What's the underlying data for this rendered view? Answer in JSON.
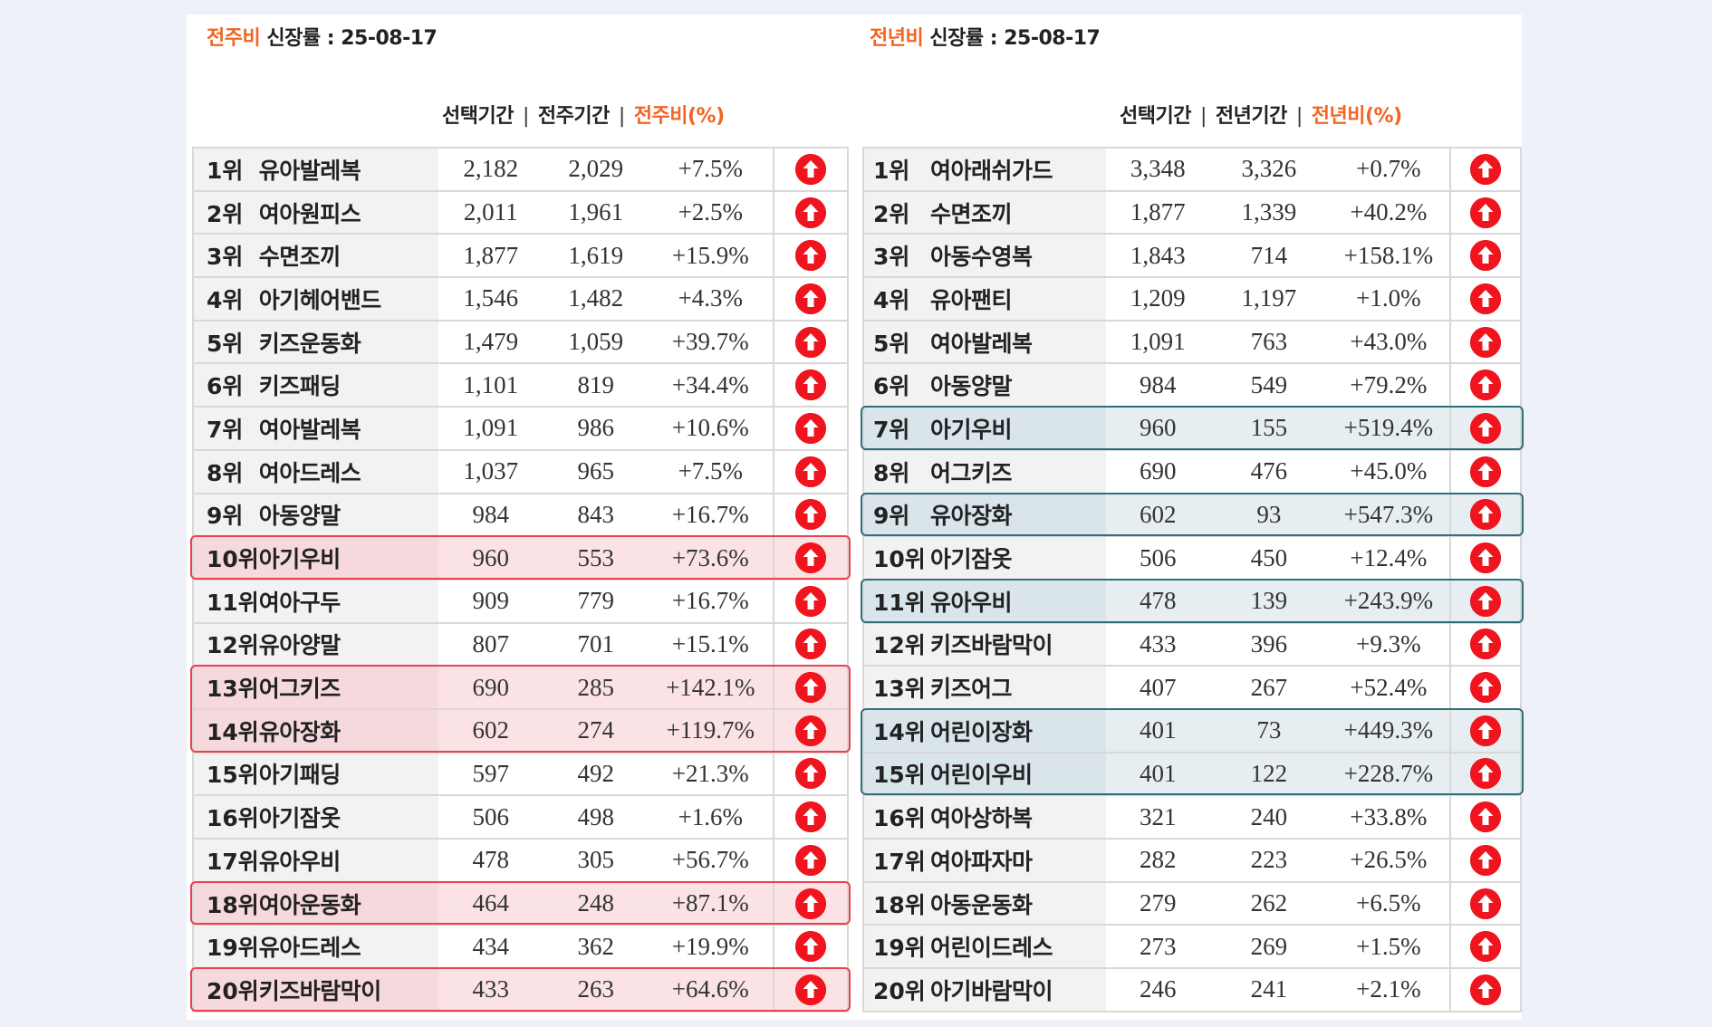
{
  "left": {
    "title_accent": "전주비",
    "title_rest": " 신장률  : 25-08-17",
    "col_selected": "선택기간",
    "col_compare": "전주기간",
    "col_ratio": "전주비(%)",
    "rows": [
      {
        "rank": "1위",
        "name": "유아발레복",
        "selected": "2,182",
        "compare": "2,029",
        "ratio": "+7.5%"
      },
      {
        "rank": "2위",
        "name": "여아원피스",
        "selected": "2,011",
        "compare": "1,961",
        "ratio": "+2.5%"
      },
      {
        "rank": "3위",
        "name": "수면조끼",
        "selected": "1,877",
        "compare": "1,619",
        "ratio": "+15.9%"
      },
      {
        "rank": "4위",
        "name": "아기헤어밴드",
        "selected": "1,546",
        "compare": "1,482",
        "ratio": "+4.3%"
      },
      {
        "rank": "5위",
        "name": "키즈운동화",
        "selected": "1,479",
        "compare": "1,059",
        "ratio": "+39.7%"
      },
      {
        "rank": "6위",
        "name": "키즈패딩",
        "selected": "1,101",
        "compare": "819",
        "ratio": "+34.4%"
      },
      {
        "rank": "7위",
        "name": "여아발레복",
        "selected": "1,091",
        "compare": "986",
        "ratio": "+10.6%"
      },
      {
        "rank": "8위",
        "name": "여아드레스",
        "selected": "1,037",
        "compare": "965",
        "ratio": "+7.5%"
      },
      {
        "rank": "9위",
        "name": "아동양말",
        "selected": "984",
        "compare": "843",
        "ratio": "+16.7%"
      },
      {
        "rank": "10위",
        "name": "아기우비",
        "selected": "960",
        "compare": "553",
        "ratio": "+73.6%"
      },
      {
        "rank": "11위",
        "name": "여아구두",
        "selected": "909",
        "compare": "779",
        "ratio": "+16.7%"
      },
      {
        "rank": "12위",
        "name": "유아양말",
        "selected": "807",
        "compare": "701",
        "ratio": "+15.1%"
      },
      {
        "rank": "13위",
        "name": "어그키즈",
        "selected": "690",
        "compare": "285",
        "ratio": "+142.1%"
      },
      {
        "rank": "14위",
        "name": "유아장화",
        "selected": "602",
        "compare": "274",
        "ratio": "+119.7%"
      },
      {
        "rank": "15위",
        "name": "아기패딩",
        "selected": "597",
        "compare": "492",
        "ratio": "+21.3%"
      },
      {
        "rank": "16위",
        "name": "아기잠옷",
        "selected": "506",
        "compare": "498",
        "ratio": "+1.6%"
      },
      {
        "rank": "17위",
        "name": "유아우비",
        "selected": "478",
        "compare": "305",
        "ratio": "+56.7%"
      },
      {
        "rank": "18위",
        "name": "여아운동화",
        "selected": "464",
        "compare": "248",
        "ratio": "+87.1%"
      },
      {
        "rank": "19위",
        "name": "유아드레스",
        "selected": "434",
        "compare": "362",
        "ratio": "+19.9%"
      },
      {
        "rank": "20위",
        "name": "키즈바람막이",
        "selected": "433",
        "compare": "263",
        "ratio": "+64.6%"
      }
    ],
    "highlighted_ranks": [
      "10위",
      "13위",
      "14위",
      "18위",
      "20위"
    ],
    "highlight_color": "#e8424f"
  },
  "right": {
    "title_accent": "전년비",
    "title_rest": " 신장률 : 25-08-17",
    "col_selected": "선택기간",
    "col_compare": "전년기간",
    "col_ratio": "전년비(%)",
    "rows": [
      {
        "rank": "1위",
        "name": "여아래쉬가드",
        "selected": "3,348",
        "compare": "3,326",
        "ratio": "+0.7%"
      },
      {
        "rank": "2위",
        "name": "수면조끼",
        "selected": "1,877",
        "compare": "1,339",
        "ratio": "+40.2%"
      },
      {
        "rank": "3위",
        "name": "아동수영복",
        "selected": "1,843",
        "compare": "714",
        "ratio": "+158.1%"
      },
      {
        "rank": "4위",
        "name": "유아팬티",
        "selected": "1,209",
        "compare": "1,197",
        "ratio": "+1.0%"
      },
      {
        "rank": "5위",
        "name": "여아발레복",
        "selected": "1,091",
        "compare": "763",
        "ratio": "+43.0%"
      },
      {
        "rank": "6위",
        "name": "아동양말",
        "selected": "984",
        "compare": "549",
        "ratio": "+79.2%"
      },
      {
        "rank": "7위",
        "name": "아기우비",
        "selected": "960",
        "compare": "155",
        "ratio": "+519.4%"
      },
      {
        "rank": "8위",
        "name": "어그키즈",
        "selected": "690",
        "compare": "476",
        "ratio": "+45.0%"
      },
      {
        "rank": "9위",
        "name": "유아장화",
        "selected": "602",
        "compare": "93",
        "ratio": "+547.3%"
      },
      {
        "rank": "10위",
        "name": "아기잠옷",
        "selected": "506",
        "compare": "450",
        "ratio": "+12.4%"
      },
      {
        "rank": "11위",
        "name": "유아우비",
        "selected": "478",
        "compare": "139",
        "ratio": "+243.9%"
      },
      {
        "rank": "12위",
        "name": "키즈바람막이",
        "selected": "433",
        "compare": "396",
        "ratio": "+9.3%"
      },
      {
        "rank": "13위",
        "name": "키즈어그",
        "selected": "407",
        "compare": "267",
        "ratio": "+52.4%"
      },
      {
        "rank": "14위",
        "name": "어린이장화",
        "selected": "401",
        "compare": "73",
        "ratio": "+449.3%"
      },
      {
        "rank": "15위",
        "name": "어린이우비",
        "selected": "401",
        "compare": "122",
        "ratio": "+228.7%"
      },
      {
        "rank": "16위",
        "name": "여아상하복",
        "selected": "321",
        "compare": "240",
        "ratio": "+33.8%"
      },
      {
        "rank": "17위",
        "name": "여아파자마",
        "selected": "282",
        "compare": "223",
        "ratio": "+26.5%"
      },
      {
        "rank": "18위",
        "name": "아동운동화",
        "selected": "279",
        "compare": "262",
        "ratio": "+6.5%"
      },
      {
        "rank": "19위",
        "name": "어린이드레스",
        "selected": "273",
        "compare": "269",
        "ratio": "+1.5%"
      },
      {
        "rank": "20위",
        "name": "아기바람막이",
        "selected": "246",
        "compare": "241",
        "ratio": "+2.1%"
      }
    ],
    "highlighted_ranks": [
      "7위",
      "9위",
      "11위",
      "14위",
      "15위"
    ],
    "highlight_color": "#2f6f7a"
  },
  "icon": "up-arrow-circle-icon",
  "accent_color": "#f26522",
  "icon_color": "#f0141e"
}
